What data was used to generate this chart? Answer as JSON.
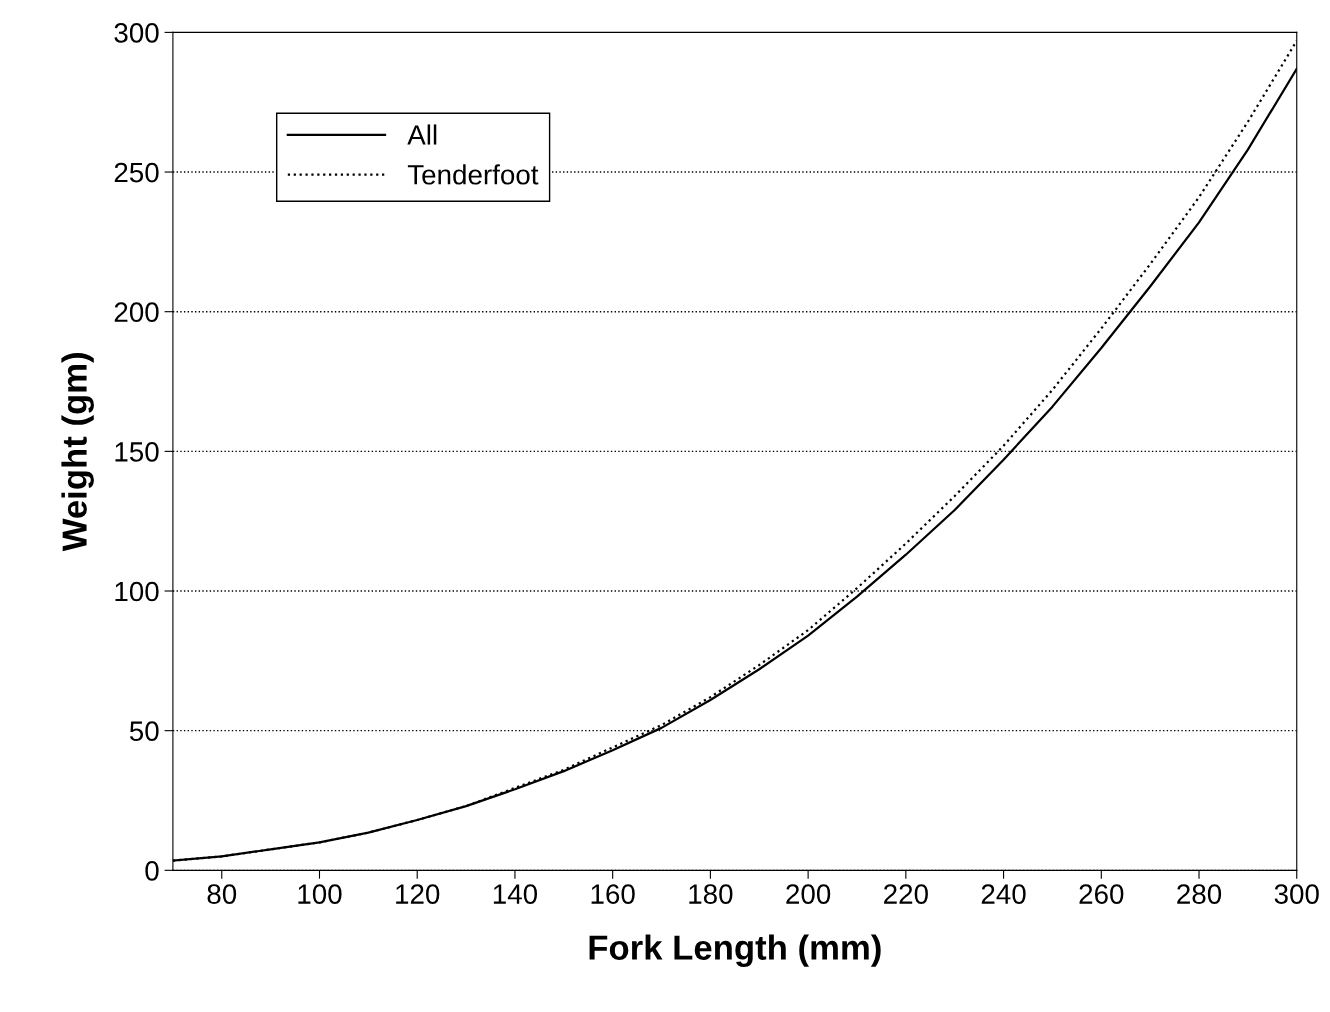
{
  "chart_data": {
    "type": "line",
    "xlabel": "Fork Length (mm)",
    "ylabel": "Weight (gm)",
    "xlim": [
      70,
      300
    ],
    "xticks": [
      80,
      100,
      120,
      140,
      160,
      180,
      200,
      220,
      240,
      260,
      280,
      300
    ],
    "ylim": [
      0,
      300
    ],
    "yticks": [
      0,
      50,
      100,
      150,
      200,
      250,
      300
    ],
    "grid": "y",
    "legend": "top left",
    "series": [
      {
        "name": "All",
        "color": "#000000",
        "line_style": "solid",
        "x": [
          70,
          80,
          90,
          100,
          110,
          120,
          130,
          140,
          150,
          160,
          170,
          180,
          190,
          200,
          210,
          220,
          230,
          240,
          250,
          260,
          270,
          280,
          290,
          300
        ],
        "values": [
          3.5,
          5,
          7.5,
          10,
          13.5,
          18,
          23,
          29,
          35.5,
          43,
          51,
          61,
          72,
          84,
          98,
          113,
          129,
          147,
          166,
          187,
          209,
          232,
          258,
          287
        ]
      },
      {
        "name": "Tenderfoot",
        "color": "#000000",
        "line_style": "dotted",
        "x": [
          70,
          80,
          90,
          100,
          110,
          120,
          130,
          140,
          150,
          160,
          170,
          180,
          190,
          200,
          210,
          220,
          230,
          240,
          250,
          260,
          270,
          280,
          290,
          300
        ],
        "values": [
          3.5,
          5,
          7.5,
          10,
          13.5,
          18,
          23,
          29.5,
          36,
          44,
          52,
          62,
          73.5,
          86,
          101,
          117,
          134,
          152,
          172,
          194,
          217,
          241,
          268,
          297
        ]
      }
    ]
  }
}
